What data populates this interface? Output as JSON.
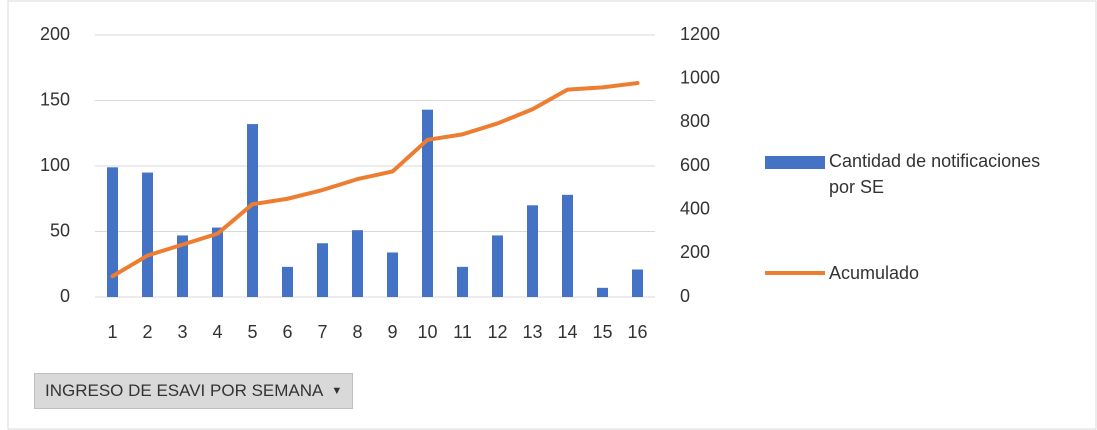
{
  "chart_data": {
    "type": "bar_line",
    "categories": [
      "1",
      "2",
      "3",
      "4",
      "5",
      "6",
      "7",
      "8",
      "9",
      "10",
      "11",
      "12",
      "13",
      "14",
      "15",
      "16"
    ],
    "series": [
      {
        "name": "Cantidad de notificaciones por SE",
        "color": "#4472c4",
        "type": "bar",
        "values": [
          99,
          95,
          47,
          53,
          132,
          23,
          41,
          51,
          34,
          143,
          23,
          47,
          70,
          78,
          7,
          21
        ]
      },
      {
        "name": "Acumulado",
        "color": "#ed7d31",
        "type": "line",
        "axis": "y2",
        "values": [
          95,
          190,
          240,
          290,
          425,
          450,
          490,
          540,
          575,
          720,
          745,
          795,
          860,
          950,
          960,
          980
        ]
      }
    ],
    "ylim": [
      0,
      200
    ],
    "yticks": [
      0,
      50,
      100,
      150,
      200
    ],
    "y2lim": [
      0,
      1200
    ],
    "y2ticks": [
      0,
      200,
      400,
      600,
      800,
      1000,
      1200
    ],
    "grid": true,
    "legend": "right",
    "filter_button": "INGRESO DE ESAVI POR SEMANA"
  }
}
